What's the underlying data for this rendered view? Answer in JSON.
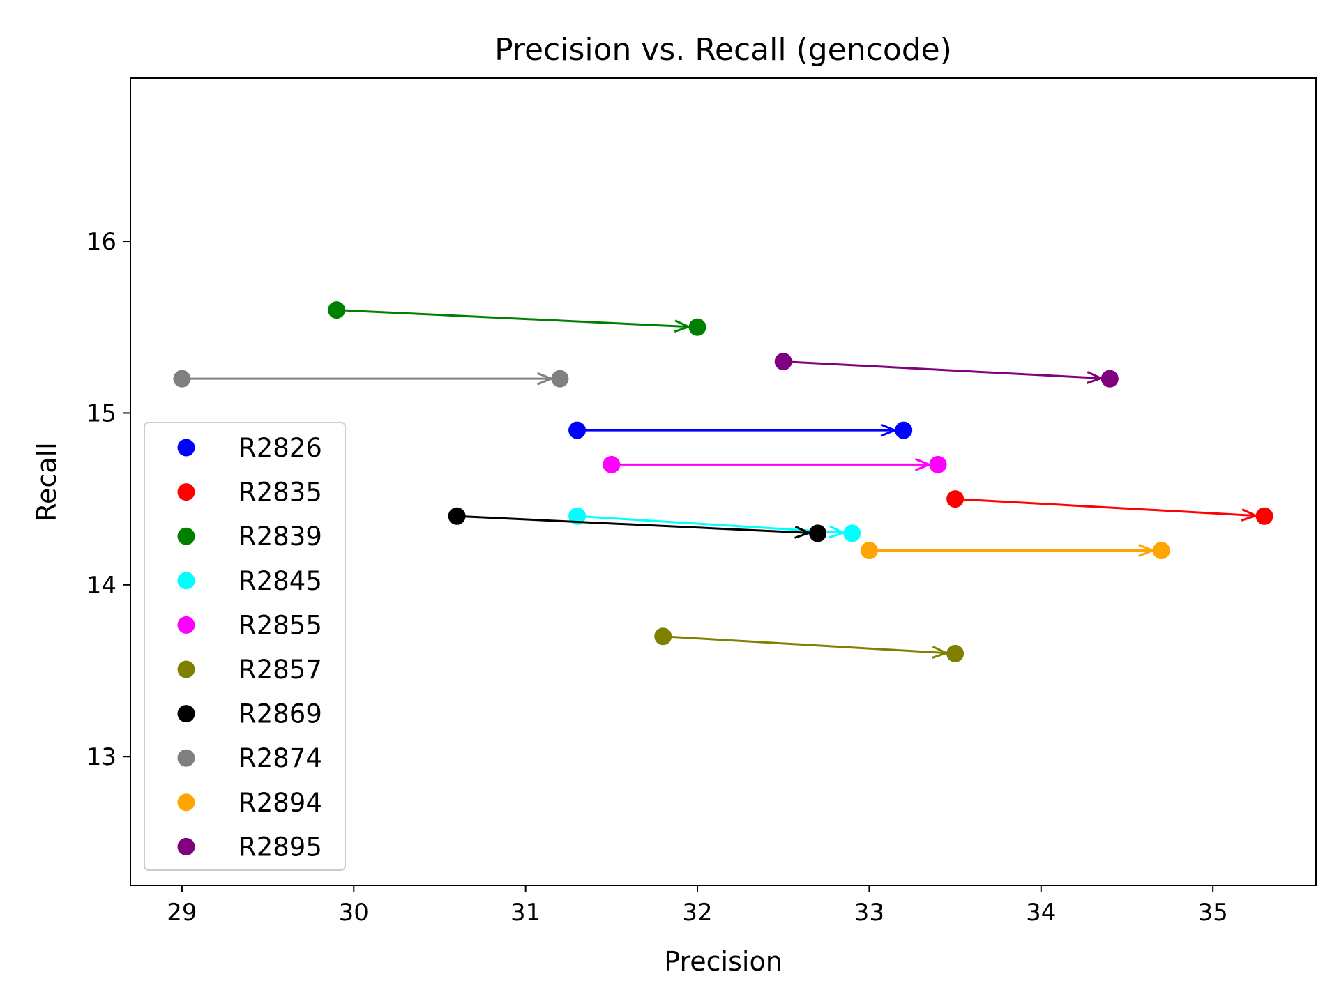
{
  "chart_data": {
    "type": "scatter",
    "title": "Precision vs. Recall (gencode)",
    "xlabel": "Precision",
    "ylabel": "Recall",
    "xlim": [
      28.7,
      35.6
    ],
    "ylim": [
      12.25,
      16.95
    ],
    "xticks": [
      29,
      30,
      31,
      32,
      33,
      34,
      35
    ],
    "yticks": [
      13,
      14,
      15,
      16
    ],
    "grid": false,
    "legend_position": "lower-left",
    "series": [
      {
        "name": "R2826",
        "color": "#0000ff",
        "from": [
          31.3,
          14.9
        ],
        "to": [
          33.2,
          14.9
        ]
      },
      {
        "name": "R2835",
        "color": "#ff0000",
        "from": [
          33.5,
          14.5
        ],
        "to": [
          35.3,
          14.4
        ]
      },
      {
        "name": "R2839",
        "color": "#008000",
        "from": [
          29.9,
          15.6
        ],
        "to": [
          32.0,
          15.5
        ]
      },
      {
        "name": "R2845",
        "color": "#00ffff",
        "from": [
          31.3,
          14.4
        ],
        "to": [
          32.9,
          14.3
        ]
      },
      {
        "name": "R2855",
        "color": "#ff00ff",
        "from": [
          31.5,
          14.7
        ],
        "to": [
          33.4,
          14.7
        ]
      },
      {
        "name": "R2857",
        "color": "#808000",
        "from": [
          31.8,
          13.7
        ],
        "to": [
          33.5,
          13.6
        ]
      },
      {
        "name": "R2869",
        "color": "#000000",
        "from": [
          30.6,
          14.4
        ],
        "to": [
          32.7,
          14.3
        ]
      },
      {
        "name": "R2874",
        "color": "#808080",
        "from": [
          29.0,
          15.2
        ],
        "to": [
          31.2,
          15.2
        ]
      },
      {
        "name": "R2894",
        "color": "#ffa500",
        "from": [
          33.0,
          14.2
        ],
        "to": [
          34.7,
          14.2
        ]
      },
      {
        "name": "R2895",
        "color": "#800080",
        "from": [
          32.5,
          15.3
        ],
        "to": [
          34.4,
          15.2
        ]
      }
    ]
  }
}
